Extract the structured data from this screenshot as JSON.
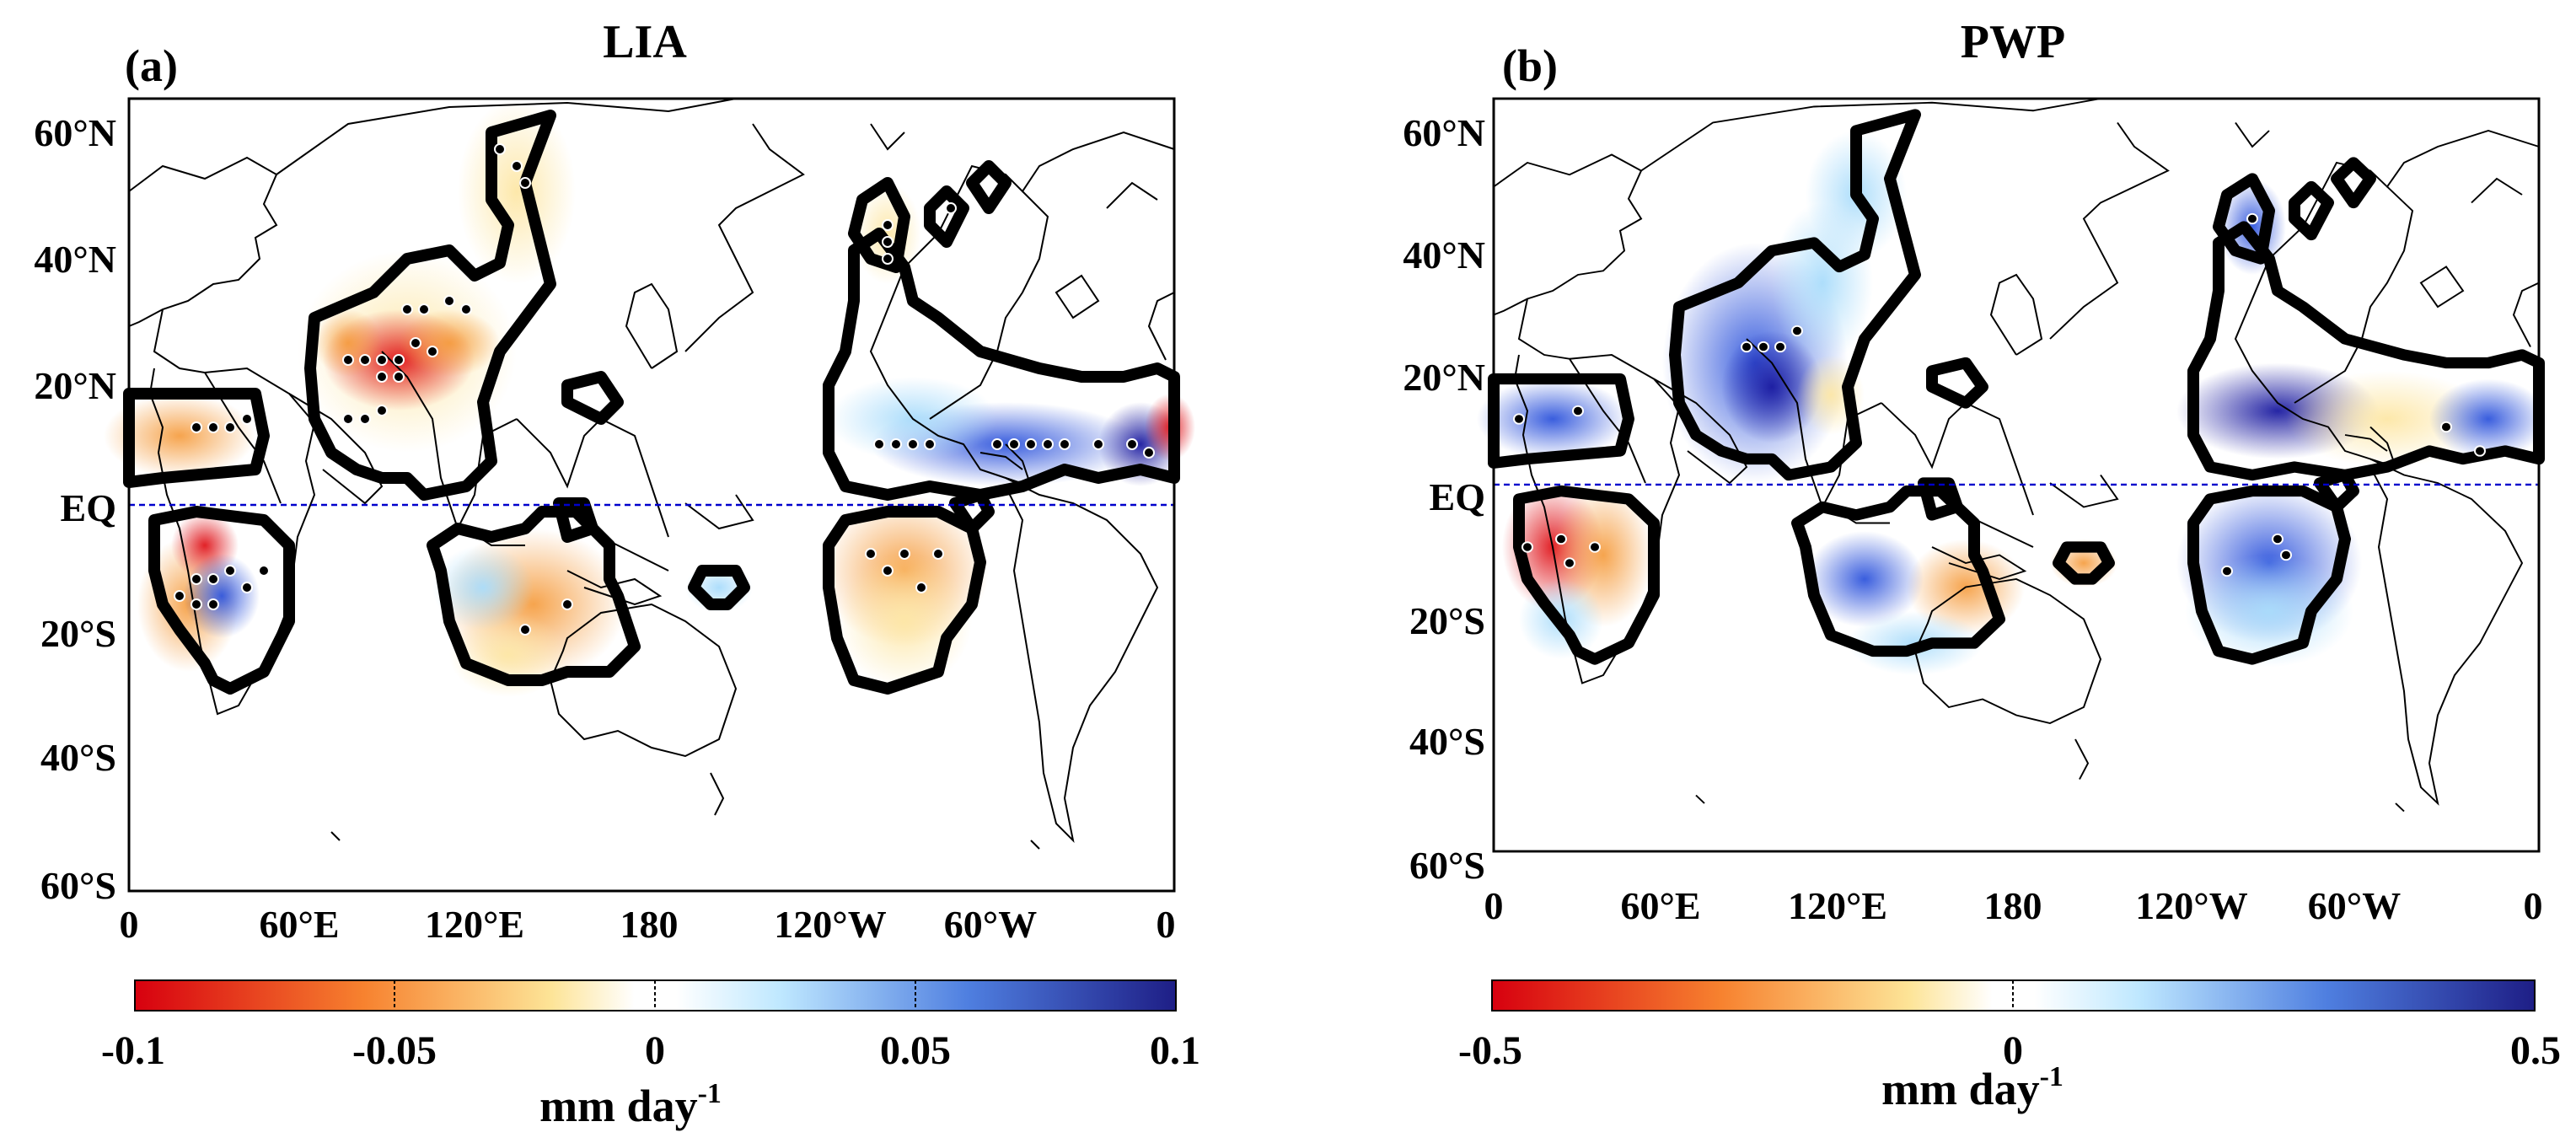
{
  "panels": [
    {
      "label": "(a)",
      "title": "LIA",
      "lat_ticks": [
        "60°N",
        "40°N",
        "20°N",
        "EQ",
        "20°S",
        "40°S",
        "60°S"
      ],
      "lon_ticks": [
        "0",
        "60°E",
        "120°E",
        "180",
        "120°W",
        "60°W",
        "0"
      ],
      "colorbar": {
        "ticks": [
          "-0.1",
          "-0.05",
          "0",
          "0.05",
          "0.1"
        ],
        "min": -0.1,
        "max": 0.1,
        "units": "mm day",
        "units_exp": "-1"
      }
    },
    {
      "label": "(b)",
      "title": "PWP",
      "lat_ticks": [
        "60°N",
        "40°N",
        "20°N",
        "EQ",
        "20°S",
        "40°S",
        "60°S"
      ],
      "lon_ticks": [
        "0",
        "60°E",
        "120°E",
        "180",
        "120°W",
        "60°W",
        "0"
      ],
      "colorbar": {
        "ticks": [
          "-0.5",
          "0",
          "0.5"
        ],
        "min": -0.5,
        "max": 0.5,
        "units": "mm day",
        "units_exp": "-1"
      }
    }
  ],
  "colors": {
    "negative_strong": "#d7000f",
    "negative_weak": "#fff4c0",
    "zero": "#ffffff",
    "positive_weak": "#c8ecff",
    "positive_strong": "#1e1e86",
    "equator_line": "#0000cc",
    "region_outline": "#000000"
  }
}
